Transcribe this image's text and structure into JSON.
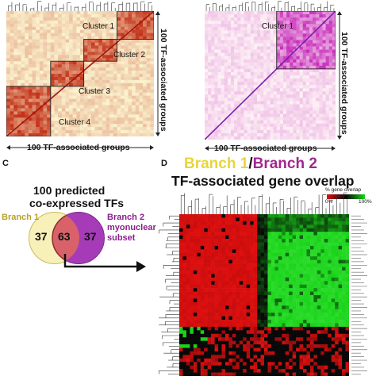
{
  "panel_a": {
    "clusters": [
      "Cluster 1",
      "Cluster 2",
      "Cluster 3",
      "Cluster 4"
    ],
    "x_axis_label": "100 TF-associated groups",
    "y_axis_label": "100 TF-associated groups",
    "colors": {
      "low": "#fbf3cf",
      "high": "#c0280f",
      "diagonal": "#a3150a"
    }
  },
  "panel_b": {
    "clusters": [
      "Cluster 1"
    ],
    "x_axis_label": "100 TF-associated groups",
    "y_axis_label": "100 TF-associated groups",
    "colors": {
      "low": "#fdf1f5",
      "high": "#c524b8",
      "diagonal": "#7a1fb0"
    }
  },
  "panel_c": {
    "letter": "C",
    "title_line1": "100 predicted",
    "title_line2": "co-expressed TFs",
    "branch1_label": "Branch 1",
    "branch2_label_line1": "Branch 2",
    "branch2_label_line2": "myonuclear",
    "branch2_label_line3": "subset",
    "left_only": "37",
    "overlap": "63",
    "right_only": "37",
    "colors": {
      "left": "#f7f0b8",
      "overlap": "#d9626a",
      "right": "#a63bb8"
    }
  },
  "panel_d": {
    "letter": "D",
    "title_branch1": "Branch 1",
    "title_sep": "/",
    "title_branch2": "Branch 2",
    "subtitle": "TF-associated gene overlap",
    "legend_title": "% gene overlap",
    "legend_min": "0%",
    "legend_max": "100%",
    "colors": {
      "branch1": "#e8d53a",
      "branch2": "#a0288f",
      "red": "#e01010",
      "green": "#19d319",
      "black": "#080808"
    }
  }
}
